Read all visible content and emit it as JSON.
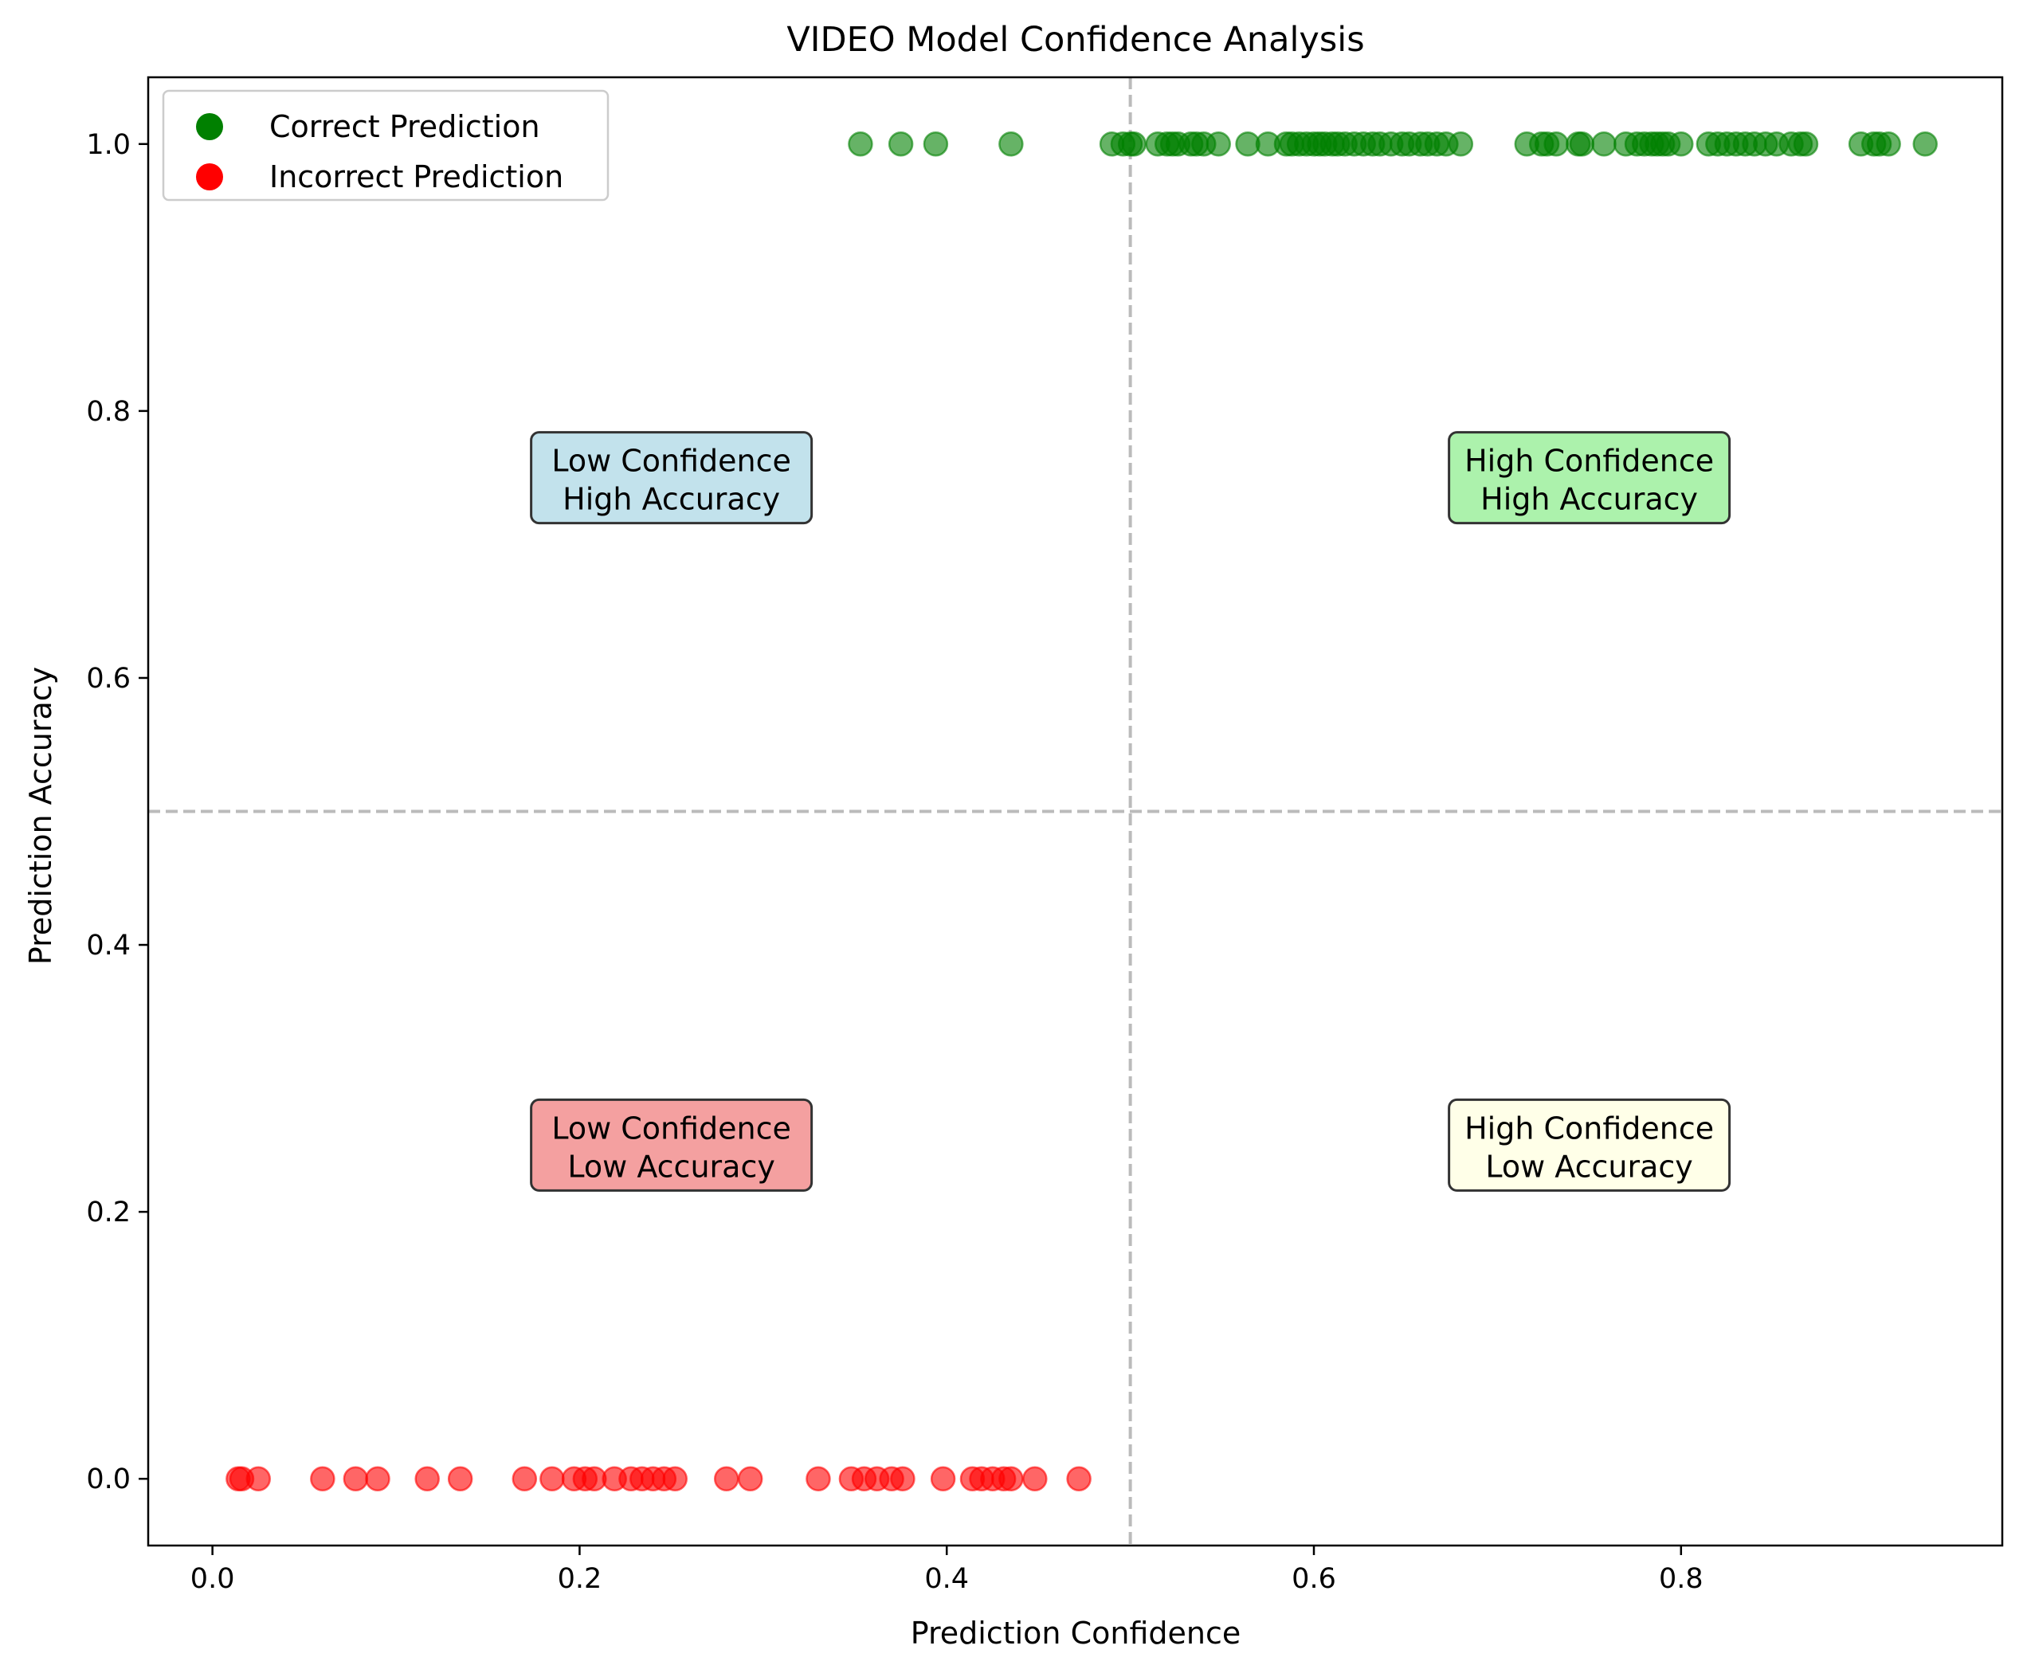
{
  "chart_data": {
    "type": "scatter",
    "title": "VIDEO Model Confidence Analysis",
    "xlabel": "Prediction Confidence",
    "ylabel": "Prediction Accuracy",
    "xlim": [
      -0.035,
      0.975
    ],
    "ylim": [
      -0.05,
      1.05
    ],
    "xticks": [
      0.0,
      0.2,
      0.4,
      0.6,
      0.8
    ],
    "xtick_labels": [
      "0.0",
      "0.2",
      "0.4",
      "0.6",
      "0.8"
    ],
    "yticks": [
      0.0,
      0.2,
      0.4,
      0.6,
      0.8,
      1.0
    ],
    "ytick_labels": [
      "0.0",
      "0.2",
      "0.4",
      "0.6",
      "0.8",
      "1.0"
    ],
    "grid": false,
    "legend_position": "top-left",
    "reference_lines": {
      "x": 0.5,
      "y": 0.5,
      "style": "dashed",
      "color": "#bbbbbb"
    },
    "series": [
      {
        "name": "Correct Prediction",
        "color": "#008000",
        "y": 1,
        "x": [
          0.353,
          0.375,
          0.394,
          0.435,
          0.49,
          0.496,
          0.5,
          0.502,
          0.515,
          0.52,
          0.523,
          0.526,
          0.533,
          0.536,
          0.54,
          0.548,
          0.564,
          0.575,
          0.585,
          0.588,
          0.592,
          0.596,
          0.6,
          0.603,
          0.606,
          0.61,
          0.613,
          0.617,
          0.622,
          0.627,
          0.632,
          0.636,
          0.642,
          0.648,
          0.652,
          0.658,
          0.662,
          0.667,
          0.672,
          0.68,
          0.716,
          0.724,
          0.727,
          0.732,
          0.744,
          0.746,
          0.758,
          0.77,
          0.776,
          0.78,
          0.784,
          0.787,
          0.79,
          0.793,
          0.8,
          0.815,
          0.82,
          0.825,
          0.83,
          0.835,
          0.84,
          0.846,
          0.852,
          0.86,
          0.865,
          0.868,
          0.898,
          0.905,
          0.908,
          0.913,
          0.933
        ]
      },
      {
        "name": "Incorrect Prediction",
        "color": "#ff0000",
        "y": 0,
        "x": [
          0.014,
          0.016,
          0.025,
          0.06,
          0.078,
          0.09,
          0.117,
          0.135,
          0.17,
          0.185,
          0.197,
          0.203,
          0.208,
          0.219,
          0.228,
          0.234,
          0.24,
          0.246,
          0.252,
          0.28,
          0.293,
          0.33,
          0.348,
          0.355,
          0.362,
          0.37,
          0.376,
          0.398,
          0.414,
          0.419,
          0.425,
          0.431,
          0.435,
          0.448,
          0.472
        ]
      }
    ],
    "quadrant_labels": [
      {
        "line1": "Low Confidence",
        "line2": "High Accuracy",
        "x": 0.25,
        "y": 0.75,
        "fill": "#add8e6"
      },
      {
        "line1": "High Confidence",
        "line2": "High Accuracy",
        "x": 0.75,
        "y": 0.75,
        "fill": "#90ee90"
      },
      {
        "line1": "Low Confidence",
        "line2": "Low Accuracy",
        "x": 0.25,
        "y": 0.25,
        "fill": "#f08080"
      },
      {
        "line1": "High Confidence",
        "line2": "Low Accuracy",
        "x": 0.75,
        "y": 0.25,
        "fill": "#ffffe0"
      }
    ]
  }
}
